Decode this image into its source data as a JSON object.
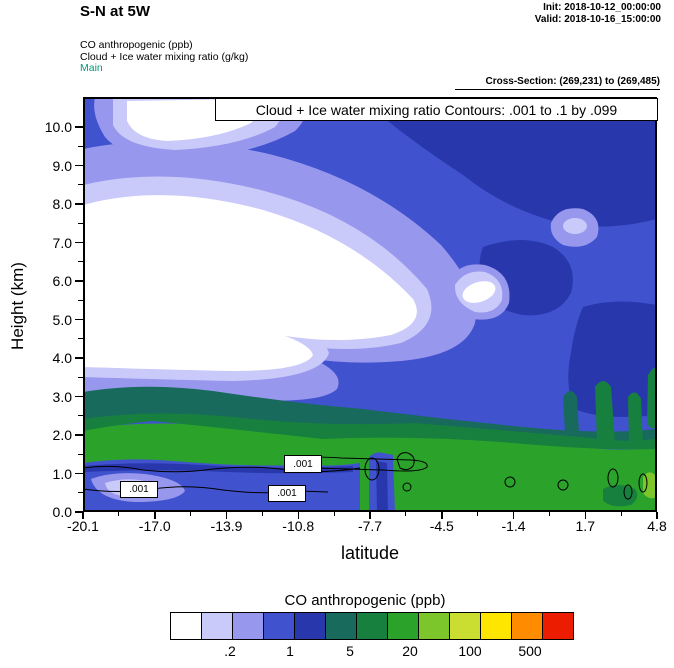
{
  "header": {
    "title": "S-N at 5W",
    "init": "Init: 2018-10-12_00:00:00",
    "valid": "Valid: 2018-10-16_15:00:00",
    "field1": "CO anthropogenic  (ppb)",
    "field2": "Cloud + Ice water mixing ratio   (g/kg)",
    "model": "Main",
    "model_color": "#00997a",
    "cross_section": "Cross-Section: (269,231) to (269,485)"
  },
  "plot": {
    "annotation": "Cloud + Ice water mixing ratio Contours: .001 to .1 by .099",
    "contour_labels": [
      ".001",
      ".001",
      ".001"
    ]
  },
  "axes": {
    "y": {
      "label": "Height (km)",
      "ticks": [
        "0.0",
        "1.0",
        "2.0",
        "3.0",
        "4.0",
        "5.0",
        "6.0",
        "7.0",
        "8.0",
        "9.0",
        "10.0"
      ]
    },
    "x": {
      "label": "latitude",
      "ticks": [
        "-20.1",
        "-17.0",
        "-13.9",
        "-10.8",
        "-7.7",
        "-4.5",
        "-1.4",
        "1.7",
        "4.8"
      ]
    }
  },
  "colorbar": {
    "title": "CO anthropogenic  (ppb)",
    "labels": [
      ".2",
      "1",
      "5",
      "20",
      "100",
      "500"
    ],
    "label_boundary_indices": [
      2,
      4,
      6,
      8,
      10,
      12
    ],
    "colors": [
      "#FFFFFF",
      "#C9C9FA",
      "#9897EE",
      "#4052CE",
      "#2838AC",
      "#176A5C",
      "#17803E",
      "#2BA32B",
      "#7CC62C",
      "#C9DE30",
      "#FFE600",
      "#FF8C00",
      "#EB1C00"
    ]
  },
  "chart_data": {
    "type": "heatmap",
    "subtype": "filled-contour-cross-section",
    "title": "S-N at 5W",
    "fill_field": "CO anthropogenic (ppb)",
    "line_field": "Cloud + Ice water mixing ratio (g/kg)",
    "line_contours": {
      "start": 0.001,
      "end": 0.1,
      "interval": 0.099
    },
    "xlabel": "latitude",
    "ylabel": "Height (km)",
    "xlim": [
      -20.1,
      4.8
    ],
    "ylim": [
      0,
      10.8
    ],
    "x_ticks": [
      -20.1,
      -17.0,
      -13.9,
      -10.8,
      -7.7,
      -4.5,
      -1.4,
      1.7,
      4.8
    ],
    "y_ticks": [
      0,
      1,
      2,
      3,
      4,
      5,
      6,
      7,
      8,
      9,
      10
    ],
    "colorbar_title": "CO anthropogenic (ppb)",
    "colorbar_labeled_levels": [
      0.2,
      1,
      5,
      20,
      100,
      500
    ],
    "init_time": "2018-10-12_00:00:00",
    "valid_time": "2018-10-16_15:00:00",
    "cross_section_points": "(269,231) to (269,485)",
    "description": "Vertical cross-section along 5W. CO is moderate (~0.5-2 ppb, blue) through most of the free troposphere, with very low CO (<0.2 ppb, white/lavender) in a large wedge between ~4 and 8 km over latitudes -20 to -8 and a small pocket near -2, 5-6 km. CO increases to ~2-5 ppb (teal) and ~5-20 ppb (green) below ~2.5 km. A shallow low-CO (blue/lavender) layer lies below ~1 km from -20 to -11 latitude. Thin black contours near 0.5-1.2 km mark cloud+ice mixing ratio of .001 g/kg with small cloud cells between -9 and 0 latitude."
  }
}
